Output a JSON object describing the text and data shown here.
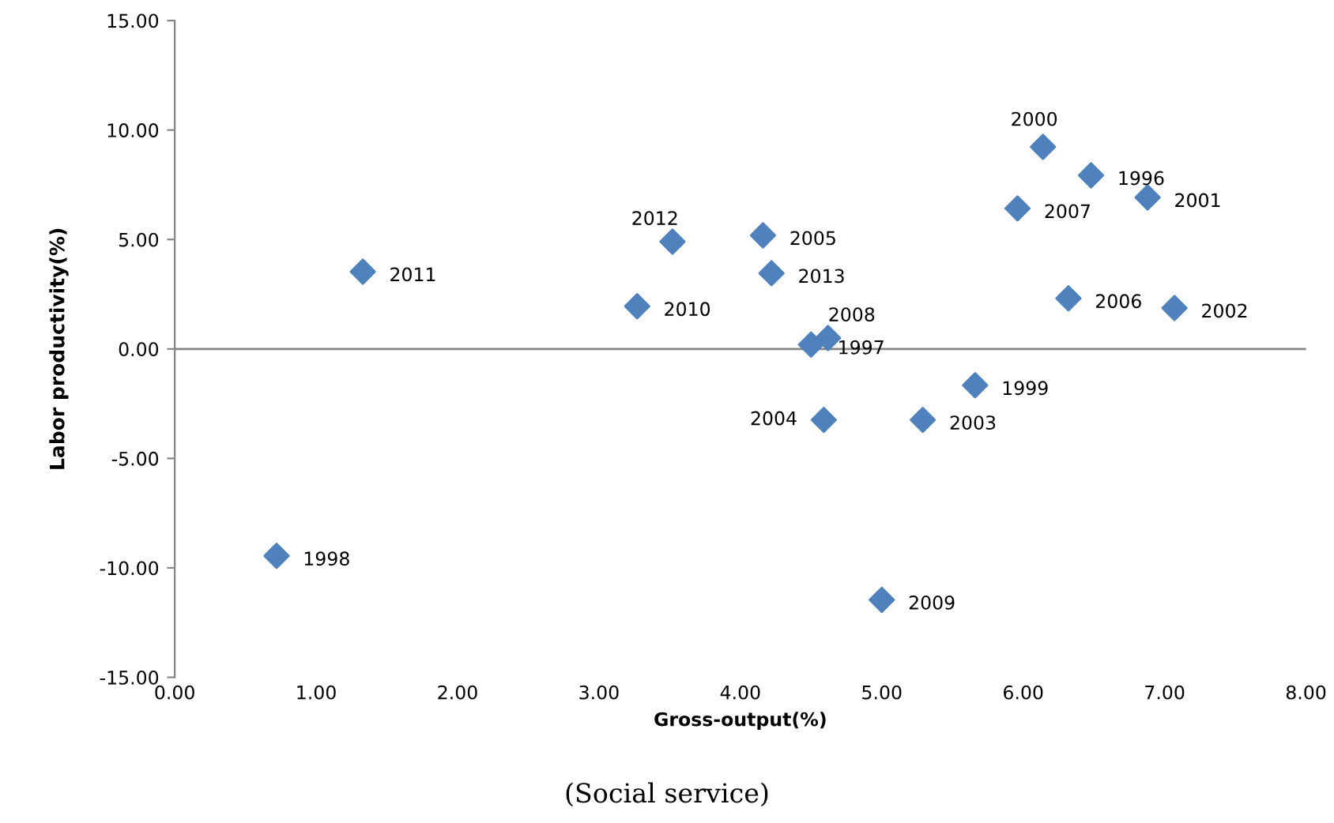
{
  "chart_data": {
    "type": "scatter",
    "xlabel": "Gross-output(%)",
    "ylabel": "Labor productivity(%)",
    "marker": "diamond",
    "grid": false,
    "legend": false,
    "series": [
      {
        "color": "#4f81bd",
        "x": [
          0.72,
          1.33,
          3.27,
          3.52,
          4.16,
          4.22,
          4.5,
          4.62,
          4.59,
          5.0,
          5.29,
          5.66,
          5.96,
          6.14,
          6.48,
          6.32,
          6.88,
          7.07
        ],
        "values": [
          -9.45,
          3.53,
          1.95,
          4.9,
          5.19,
          3.46,
          0.2,
          0.5,
          -3.24,
          -11.46,
          -3.24,
          -1.66,
          6.42,
          9.23,
          7.93,
          2.31,
          6.92,
          1.87
        ]
      }
    ],
    "xlim": [
      0,
      8
    ],
    "ylim": [
      -15,
      15
    ],
    "xticks": [
      {
        "value": 0,
        "label": "0.00"
      },
      {
        "value": 1,
        "label": "1.00"
      },
      {
        "value": 2,
        "label": "2.00"
      },
      {
        "value": 3,
        "label": "3.00"
      },
      {
        "value": 4,
        "label": "4.00"
      },
      {
        "value": 5,
        "label": "5.00"
      },
      {
        "value": 6,
        "label": "6.00"
      },
      {
        "value": 7,
        "label": "7.00"
      },
      {
        "value": 8,
        "label": "8.00"
      }
    ],
    "yticks": [
      {
        "value": -15,
        "label": "-15.00"
      },
      {
        "value": -10,
        "label": "-10.00"
      },
      {
        "value": -5,
        "label": "-5.00"
      },
      {
        "value": 0,
        "label": "0.00"
      },
      {
        "value": 5,
        "label": "5.00"
      },
      {
        "value": 10,
        "label": "10.00"
      },
      {
        "value": 15,
        "label": "15.00"
      }
    ],
    "ref_lines": [
      {
        "axis": "y",
        "value": 0,
        "color": "#868686"
      }
    ],
    "annotations": [
      {
        "text": "1998",
        "x": 0.72,
        "y": -9.45
      },
      {
        "text": "2011",
        "x": 1.33,
        "y": 3.53
      },
      {
        "text": "2010",
        "x": 3.27,
        "y": 1.95
      },
      {
        "text": "2012",
        "x": 3.52,
        "y": 4.9
      },
      {
        "text": "2005",
        "x": 4.16,
        "y": 5.19
      },
      {
        "text": "2013",
        "x": 4.22,
        "y": 3.46
      },
      {
        "text": "1997",
        "x": 4.5,
        "y": 0.2
      },
      {
        "text": "2008",
        "x": 4.62,
        "y": 0.5
      },
      {
        "text": "2004",
        "x": 4.59,
        "y": -3.24
      },
      {
        "text": "2009",
        "x": 5.0,
        "y": -11.46
      },
      {
        "text": "2003",
        "x": 5.29,
        "y": -3.24
      },
      {
        "text": "1999",
        "x": 5.66,
        "y": -1.66
      },
      {
        "text": "2007",
        "x": 5.96,
        "y": 6.42
      },
      {
        "text": "2000",
        "x": 6.14,
        "y": 9.23
      },
      {
        "text": "1996",
        "x": 6.48,
        "y": 7.93
      },
      {
        "text": "2006",
        "x": 6.32,
        "y": 2.31
      },
      {
        "text": "2001",
        "x": 6.88,
        "y": 6.92
      },
      {
        "text": "2002",
        "x": 7.07,
        "y": 1.87
      },
      "(Social service)"
    ]
  }
}
